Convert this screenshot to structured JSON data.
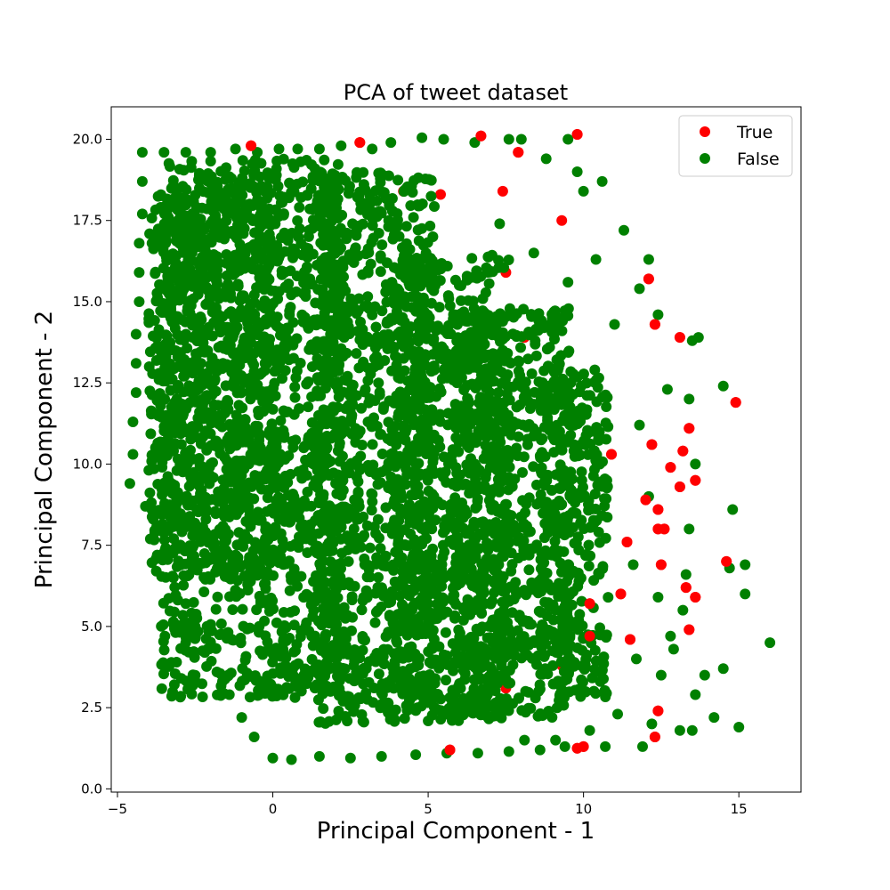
{
  "chart_data": {
    "type": "scatter",
    "title": "PCA of tweet dataset",
    "xlabel": "Principal Component - 1",
    "ylabel": "Principal Component - 2",
    "xlim": [
      -5.2,
      17.0
    ],
    "ylim": [
      -0.1,
      21.0
    ],
    "xticks": [
      -5,
      0,
      5,
      10,
      15
    ],
    "xtick_labels": [
      "−5",
      "0",
      "5",
      "10",
      "15"
    ],
    "yticks": [
      0.0,
      2.5,
      5.0,
      7.5,
      10.0,
      12.5,
      15.0,
      17.5,
      20.0
    ],
    "ytick_labels": [
      "0.0",
      "2.5",
      "5.0",
      "7.5",
      "10.0",
      "12.5",
      "15.0",
      "17.5",
      "20.0"
    ],
    "grid": false,
    "legend_position": "top-right",
    "series": [
      {
        "name": "True",
        "color": "#ff0000",
        "points": [
          [
            6.7,
            20.1
          ],
          [
            9.8,
            20.15
          ],
          [
            7.9,
            19.6
          ],
          [
            2.8,
            19.9
          ],
          [
            -0.7,
            19.8
          ],
          [
            9.3,
            17.5
          ],
          [
            12.1,
            15.7
          ],
          [
            12.3,
            14.3
          ],
          [
            13.1,
            13.9
          ],
          [
            14.9,
            11.9
          ],
          [
            13.4,
            11.1
          ],
          [
            12.2,
            10.6
          ],
          [
            13.2,
            10.4
          ],
          [
            12.8,
            9.9
          ],
          [
            13.1,
            9.3
          ],
          [
            13.6,
            9.5
          ],
          [
            12.4,
            8.0
          ],
          [
            12.6,
            8.0
          ],
          [
            12.4,
            8.6
          ],
          [
            12.5,
            6.9
          ],
          [
            13.3,
            6.2
          ],
          [
            14.6,
            7.0
          ],
          [
            13.6,
            5.9
          ],
          [
            13.4,
            4.9
          ],
          [
            12.4,
            2.4
          ],
          [
            12.3,
            1.6
          ],
          [
            9.8,
            1.25
          ],
          [
            10.0,
            1.3
          ],
          [
            11.5,
            4.6
          ],
          [
            11.2,
            6.0
          ],
          [
            5.7,
            1.2
          ],
          [
            7.5,
            3.1
          ],
          [
            11.4,
            7.6
          ],
          [
            12.0,
            8.9
          ],
          [
            10.9,
            10.3
          ],
          [
            10.2,
            5.7
          ],
          [
            5.4,
            18.3
          ],
          [
            7.4,
            18.4
          ],
          [
            7.5,
            15.9
          ],
          [
            9.1,
            14.1
          ],
          [
            4.2,
            18.4
          ],
          [
            8.1,
            13.9
          ],
          [
            10.2,
            4.7
          ],
          [
            9.3,
            3.8
          ],
          [
            4.5,
            2.9
          ]
        ]
      },
      {
        "name": "False",
        "color": "#008000",
        "points": [
          [
            -4.6,
            9.4
          ],
          [
            -4.5,
            10.3
          ],
          [
            -4.5,
            11.3
          ],
          [
            -4.4,
            12.2
          ],
          [
            -4.4,
            13.1
          ],
          [
            -4.4,
            14.0
          ],
          [
            -4.3,
            15.0
          ],
          [
            -4.3,
            15.9
          ],
          [
            -4.3,
            16.8
          ],
          [
            -4.2,
            17.7
          ],
          [
            -4.2,
            18.7
          ],
          [
            -4.2,
            19.6
          ],
          [
            -4.1,
            8.7
          ],
          [
            -3.8,
            7.9
          ],
          [
            -3.5,
            7.2
          ],
          [
            -3.2,
            6.5
          ],
          [
            -2.8,
            5.7
          ],
          [
            -2.5,
            5.0
          ],
          [
            -2.1,
            4.3
          ],
          [
            -1.8,
            3.6
          ],
          [
            -1.4,
            2.9
          ],
          [
            -1.0,
            2.2
          ],
          [
            -0.6,
            1.6
          ],
          [
            0.0,
            0.95
          ],
          [
            0.6,
            0.9
          ],
          [
            1.5,
            1.0
          ],
          [
            2.5,
            0.95
          ],
          [
            3.5,
            1.0
          ],
          [
            4.6,
            1.05
          ],
          [
            5.6,
            1.1
          ],
          [
            6.6,
            1.1
          ],
          [
            7.6,
            1.15
          ],
          [
            8.6,
            1.2
          ],
          [
            9.4,
            1.3
          ],
          [
            10.7,
            1.3
          ],
          [
            11.9,
            1.3
          ],
          [
            13.1,
            1.8
          ],
          [
            13.5,
            1.8
          ],
          [
            15.0,
            1.9
          ],
          [
            14.2,
            2.2
          ],
          [
            13.6,
            2.9
          ],
          [
            14.5,
            3.7
          ],
          [
            13.9,
            3.5
          ],
          [
            16.0,
            4.5
          ],
          [
            15.2,
            6.0
          ],
          [
            15.2,
            6.9
          ],
          [
            14.7,
            6.8
          ],
          [
            14.8,
            8.6
          ],
          [
            14.5,
            12.4
          ],
          [
            13.7,
            13.9
          ],
          [
            13.5,
            13.8
          ],
          [
            13.4,
            12.0
          ],
          [
            13.6,
            10.0
          ],
          [
            13.4,
            8.0
          ],
          [
            13.3,
            6.6
          ],
          [
            13.2,
            5.5
          ],
          [
            12.9,
            4.3
          ],
          [
            12.5,
            3.5
          ],
          [
            12.2,
            2.0
          ],
          [
            12.1,
            16.3
          ],
          [
            11.3,
            17.2
          ],
          [
            10.6,
            18.7
          ],
          [
            10.0,
            18.4
          ],
          [
            9.8,
            19.0
          ],
          [
            9.5,
            20.0
          ],
          [
            8.8,
            19.4
          ],
          [
            8.0,
            20.0
          ],
          [
            7.6,
            20.0
          ],
          [
            6.5,
            19.9
          ],
          [
            5.5,
            20.0
          ],
          [
            4.8,
            20.05
          ],
          [
            3.8,
            19.9
          ],
          [
            3.2,
            19.7
          ],
          [
            2.2,
            19.8
          ],
          [
            1.5,
            19.7
          ],
          [
            0.8,
            19.7
          ],
          [
            0.2,
            19.7
          ],
          [
            -0.5,
            19.6
          ],
          [
            -1.2,
            19.7
          ],
          [
            -2.0,
            19.6
          ],
          [
            -2.8,
            19.6
          ],
          [
            -3.5,
            19.6
          ],
          [
            11.1,
            2.3
          ],
          [
            10.2,
            1.8
          ],
          [
            9.1,
            1.5
          ],
          [
            8.1,
            1.5
          ],
          [
            11.7,
            4.0
          ],
          [
            12.8,
            4.7
          ],
          [
            12.4,
            5.9
          ],
          [
            11.6,
            6.9
          ],
          [
            12.1,
            9.0
          ],
          [
            11.8,
            11.2
          ],
          [
            12.7,
            12.3
          ],
          [
            12.4,
            14.6
          ],
          [
            11.0,
            14.3
          ],
          [
            11.8,
            15.4
          ],
          [
            10.4,
            16.3
          ],
          [
            9.5,
            15.6
          ],
          [
            8.4,
            16.5
          ],
          [
            7.3,
            17.4
          ]
        ],
        "dense_regions": [
          {
            "x_range": [
              -3.6,
              2.3
            ],
            "y_range": [
              2.8,
              19.4
            ]
          },
          {
            "x_range": [
              -4.0,
              0.2
            ],
            "y_range": [
              6.5,
              18.6
            ]
          },
          {
            "x_range": [
              1.4,
              5.2
            ],
            "y_range": [
              2.0,
              19.0
            ]
          },
          {
            "x_range": [
              3.8,
              7.6
            ],
            "y_range": [
              2.0,
              16.5
            ]
          },
          {
            "x_range": [
              5.8,
              9.6
            ],
            "y_range": [
              2.2,
              14.8
            ]
          },
          {
            "x_range": [
              8.6,
              10.8
            ],
            "y_range": [
              2.8,
              13.0
            ]
          }
        ]
      }
    ]
  }
}
